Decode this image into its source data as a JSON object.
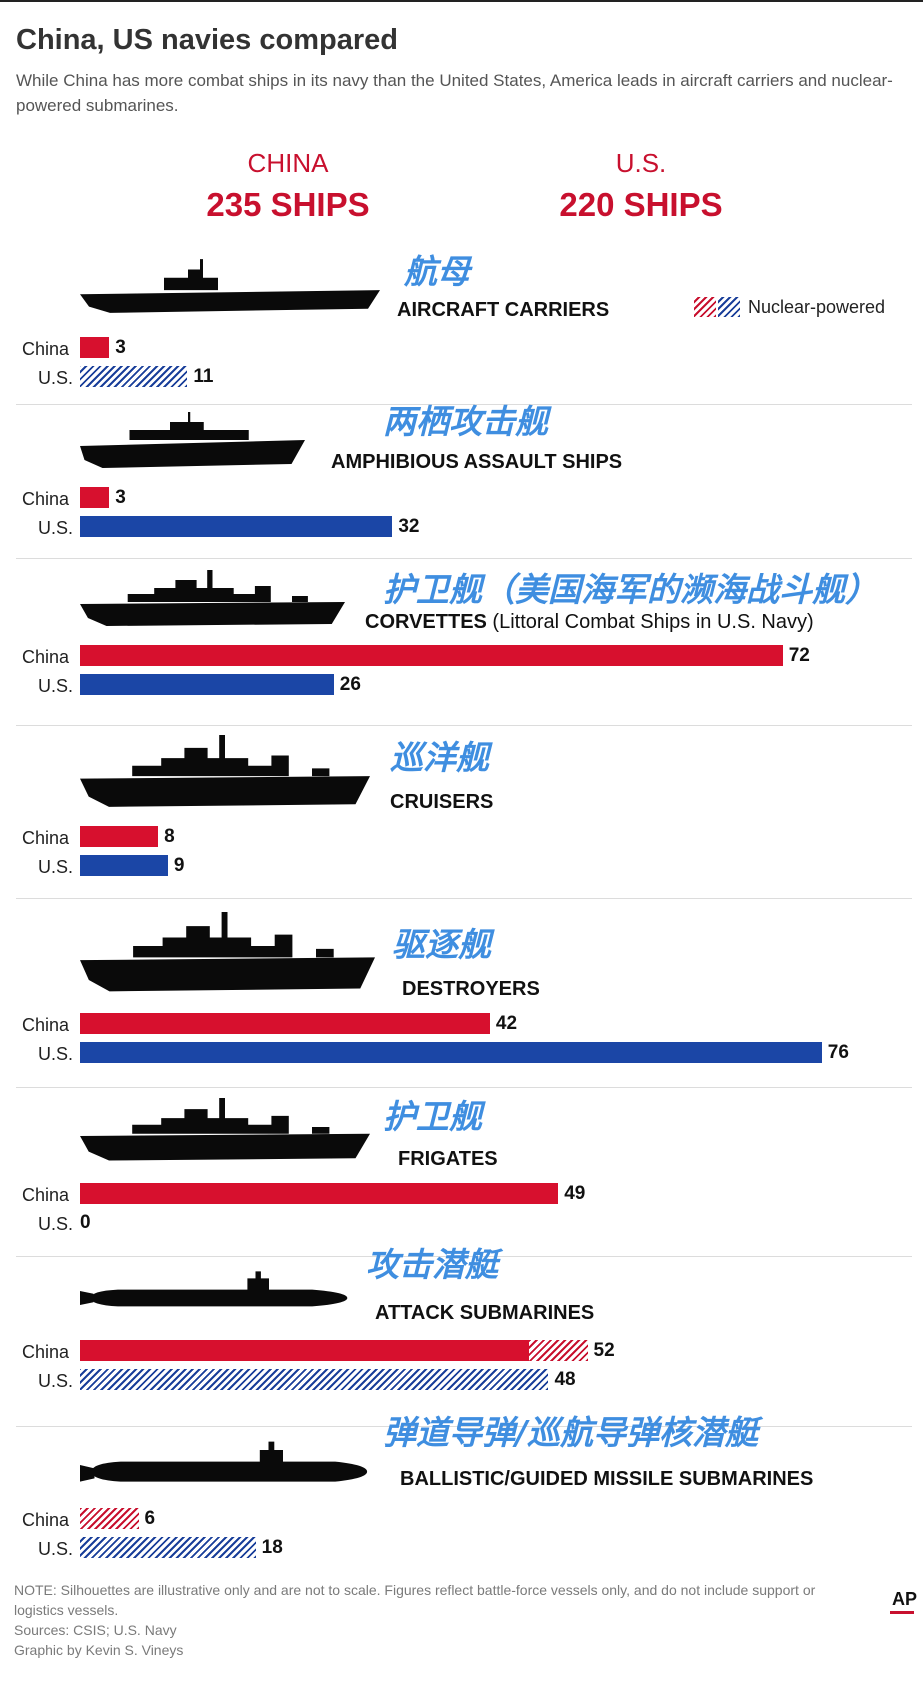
{
  "title": "China, US navies compared",
  "subtitle": "While China has more combat ships in its navy than the United States, America leads in aircraft carriers and nuclear-powered submarines.",
  "totals": {
    "china": {
      "name": "CHINA",
      "count": "235 SHIPS"
    },
    "us": {
      "name": "U.S.",
      "count": "220 SHIPS"
    }
  },
  "legend": {
    "label": "Nuclear-powered"
  },
  "colors": {
    "china": "#d7102e",
    "us": "#1b46a6",
    "chinese_heading": "#3f8ee0"
  },
  "row_labels": {
    "china": "China",
    "us": "U.S."
  },
  "chart_data": {
    "type": "bar",
    "orientation": "horizontal",
    "title": "China, US navies compared",
    "categories": [
      "AIRCRAFT CARRIERS",
      "AMPHIBIOUS ASSAULT SHIPS",
      "CORVETTES (Littoral Combat Ships in U.S. Navy)",
      "CRUISERS",
      "DESTROYERS",
      "FRIGATES",
      "ATTACK SUBMARINES",
      "BALLISTIC/GUIDED MISSILE SUBMARINES"
    ],
    "series": [
      {
        "name": "China",
        "values": [
          3,
          3,
          72,
          8,
          42,
          49,
          52,
          6
        ],
        "nuclear_powered": [
          0,
          0,
          0,
          0,
          0,
          0,
          6,
          6
        ]
      },
      {
        "name": "U.S.",
        "values": [
          11,
          32,
          26,
          9,
          76,
          0,
          48,
          18
        ],
        "nuclear_powered": [
          11,
          0,
          0,
          0,
          0,
          0,
          48,
          18
        ]
      }
    ],
    "xlim": [
      0,
      76
    ],
    "grid": false,
    "legend_position": "top-right",
    "groups": [
      {
        "cn": "航母",
        "en": "AIRCRAFT CARRIERS",
        "note": "",
        "ship": "carrier-silhouette-icon",
        "china": 3,
        "china_nuclear": 0,
        "us": 11,
        "us_nuclear": 11
      },
      {
        "cn": "两栖攻击舰",
        "en": "AMPHIBIOUS ASSAULT SHIPS",
        "note": "",
        "ship": "amphibious-ship-silhouette-icon",
        "china": 3,
        "china_nuclear": 0,
        "us": 32,
        "us_nuclear": 0
      },
      {
        "cn": "护卫舰（美国海军的濒海战斗舰）",
        "en": "CORVETTES",
        "note": " (Littoral Combat Ships in U.S. Navy)",
        "ship": "corvette-silhouette-icon",
        "china": 72,
        "china_nuclear": 0,
        "us": 26,
        "us_nuclear": 0
      },
      {
        "cn": "巡洋舰",
        "en": "CRUISERS",
        "note": "",
        "ship": "cruiser-silhouette-icon",
        "china": 8,
        "china_nuclear": 0,
        "us": 9,
        "us_nuclear": 0
      },
      {
        "cn": "驱逐舰",
        "en": "DESTROYERS",
        "note": "",
        "ship": "destroyer-silhouette-icon",
        "china": 42,
        "china_nuclear": 0,
        "us": 76,
        "us_nuclear": 0
      },
      {
        "cn": "护卫舰",
        "en": "FRIGATES",
        "note": "",
        "ship": "frigate-silhouette-icon",
        "china": 49,
        "china_nuclear": 0,
        "us": 0,
        "us_nuclear": 0
      },
      {
        "cn": "攻击潜艇",
        "en": "ATTACK SUBMARINES",
        "note": "",
        "ship": "submarine-silhouette-icon",
        "china": 52,
        "china_nuclear": 6,
        "us": 48,
        "us_nuclear": 48
      },
      {
        "cn": "弹道导弹/巡航导弹核潜艇",
        "en": "BALLISTIC/GUIDED MISSILE SUBMARINES",
        "note": "",
        "ship": "missile-submarine-silhouette-icon",
        "china": 6,
        "china_nuclear": 6,
        "us": 18,
        "us_nuclear": 18
      }
    ]
  },
  "footer": {
    "note": "NOTE: Silhouettes are illustrative only and are not to scale. Figures reflect battle-force vessels only, and do not include support or logistics vessels.",
    "sources": "Sources: CSIS; U.S. Navy",
    "credit": "Graphic by Kevin S. Vineys",
    "logo": "AP"
  }
}
